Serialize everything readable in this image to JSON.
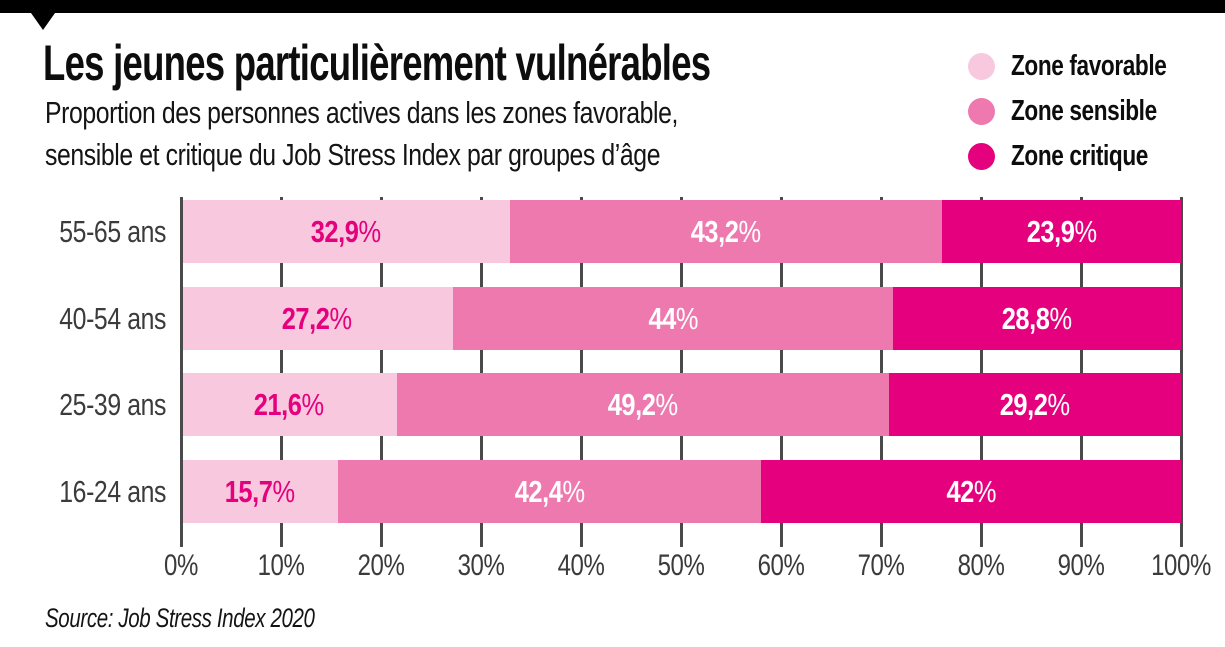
{
  "header": {
    "title": "Les jeunes particulièrement vulnérables",
    "subtitle_line1": "Proportion des personnes actives dans les zones favorable,",
    "subtitle_line2": "sensible et critique du Job Stress Index par groupes d’âge"
  },
  "legend": {
    "items": [
      {
        "label": "Zone favorable",
        "color": "#F8C8DE"
      },
      {
        "label": "Zone sensible",
        "color": "#EE79AE"
      },
      {
        "label": "Zone critique",
        "color": "#E5007D"
      }
    ]
  },
  "chart_data": {
    "type": "bar",
    "orientation": "horizontal",
    "stacked": true,
    "title": "Les jeunes particulièrement vulnérables",
    "xlabel": "",
    "ylabel": "",
    "grid": true,
    "legend_position": "top-right",
    "categories": [
      "55-65 ans",
      "40-54 ans",
      "25-39 ans",
      "16-24 ans"
    ],
    "series": [
      {
        "name": "Zone favorable",
        "color": "#F8C8DE",
        "label_color": "#E5007D",
        "values": [
          32.9,
          27.2,
          21.6,
          15.7
        ],
        "labels": [
          "32,9%",
          "27,2%",
          "21,6%",
          "15,7%"
        ]
      },
      {
        "name": "Zone sensible",
        "color": "#EE79AE",
        "label_color": "#FFFFFF",
        "values": [
          43.2,
          44,
          49.2,
          42.4
        ],
        "labels": [
          "43,2%",
          "44%",
          "49,2%",
          "42,4%"
        ]
      },
      {
        "name": "Zone critique",
        "color": "#E5007D",
        "label_color": "#FFFFFF",
        "values": [
          23.9,
          28.8,
          29.2,
          42
        ],
        "labels": [
          "23,9%",
          "28,8%",
          "29,2%",
          "42%"
        ]
      }
    ],
    "x_axis": {
      "min": 0,
      "max": 100,
      "tick_labels": [
        "0%",
        "10%",
        "20%",
        "30%",
        "40%",
        "50%",
        "60%",
        "70%",
        "80%",
        "90%",
        "100%"
      ]
    }
  },
  "source": "Source: Job Stress Index 2020"
}
